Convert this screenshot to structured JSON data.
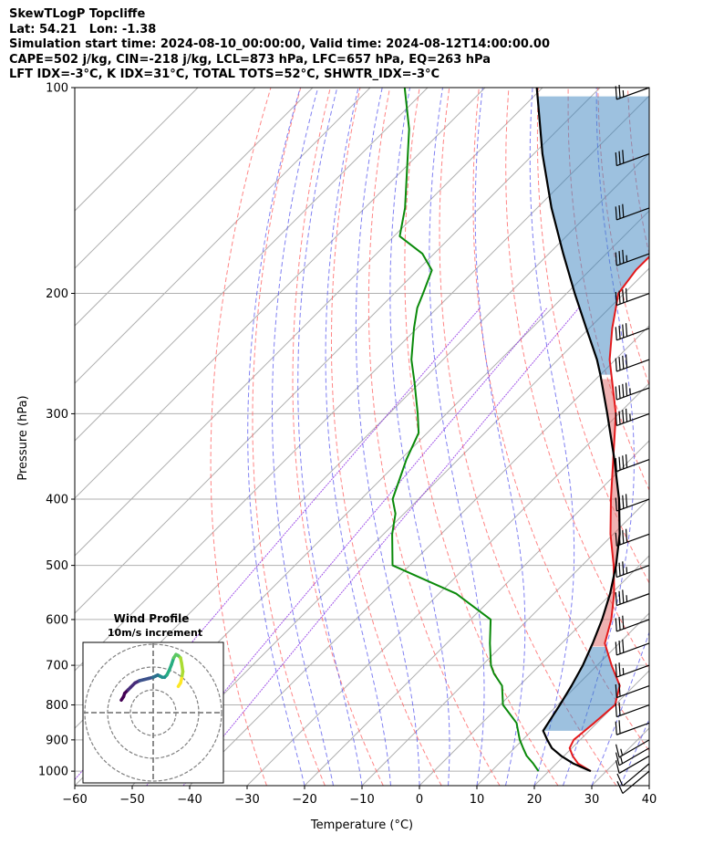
{
  "header": {
    "line1": "SkewTLogP Topcliffe",
    "line2": "Lat: 54.21   Lon: -1.38",
    "line3": "Simulation start time: 2024-08-10_00:00:00, Valid time: 2024-08-12T14:00:00.00",
    "line4": "CAPE=502 j/kg, CIN=-218 j/kg, LCL=873 hPa, LFC=657 hPa, EQ=263 hPa",
    "line5": "LFT IDX=-3°C, K IDX=31°C, TOTAL TOTS=52°C, SHWTR_IDX=-3°C"
  },
  "chart_data": {
    "type": "line",
    "xlabel": "Temperature (°C)",
    "ylabel": "Pressure (hPa)",
    "xlim": [
      -60,
      40
    ],
    "ylim": [
      1050,
      100
    ],
    "log_y": true,
    "x_ticks": [
      "−60",
      "−50",
      "−40",
      "−30",
      "−20",
      "−10",
      "0",
      "10",
      "20",
      "30",
      "40"
    ],
    "y_ticks": [
      "100",
      "200",
      "300",
      "400",
      "500",
      "600",
      "700",
      "800",
      "900",
      "1000"
    ],
    "grid": true,
    "colors": {
      "temperature": "#e41a1c",
      "dewpoint": "#0a8a0a",
      "parcel": "#000000",
      "cape": "#e06666",
      "cin": "#3b84c0",
      "dry_adiabat": "#ff6666",
      "moist_adiabat": "#5555ee",
      "mixing_ratio": "#8a2be2"
    },
    "temperature": {
      "p": [
        1000,
        975,
        950,
        925,
        900,
        850,
        800,
        750,
        700,
        650,
        600,
        550,
        500,
        450,
        400,
        350,
        300,
        250,
        225,
        200,
        185,
        170,
        150,
        130,
        115,
        100
      ],
      "t": [
        27.3,
        23.8,
        21.5,
        19.6,
        18.9,
        19.5,
        20.0,
        17.5,
        12.5,
        7.5,
        4.5,
        0.5,
        -4.5,
        -10.5,
        -16.5,
        -23.0,
        -30.5,
        -41.0,
        -46.0,
        -51.0,
        -52.0,
        -52.0,
        -52.0,
        -53.0,
        -54.0,
        -55.0
      ]
    },
    "dewpoint": {
      "p": [
        1000,
        975,
        950,
        925,
        900,
        850,
        800,
        750,
        720,
        700,
        650,
        600,
        550,
        500,
        450,
        420,
        400,
        350,
        320,
        300,
        270,
        250,
        225,
        210,
        200,
        185,
        175,
        165,
        150,
        130,
        115,
        100
      ],
      "t": [
        18.2,
        16.0,
        13.5,
        11.5,
        9.5,
        6.0,
        0.5,
        -3.0,
        -6.5,
        -8.5,
        -12.5,
        -16.5,
        -27.0,
        -43.0,
        -48.5,
        -51.5,
        -54.5,
        -59.0,
        -61.5,
        -65.0,
        -71.0,
        -75.5,
        -80.5,
        -83.5,
        -85.0,
        -87.5,
        -92.0,
        -99.0,
        -103.0,
        -110.0,
        -116.0,
        -124.0
      ]
    },
    "parcel": {
      "p": [
        1000,
        975,
        950,
        925,
        900,
        873,
        850,
        800,
        750,
        700,
        650,
        600,
        550,
        500,
        450,
        400,
        350,
        300,
        263,
        250,
        225,
        200,
        175,
        150,
        125,
        100
      ],
      "t": [
        27.3,
        23.0,
        19.5,
        16.5,
        14.3,
        12.0,
        11.5,
        10.4,
        9.1,
        7.5,
        5.4,
        2.9,
        -0.2,
        -4.1,
        -8.9,
        -15.1,
        -22.8,
        -32.0,
        -40.0,
        -43.2,
        -50.5,
        -58.6,
        -67.5,
        -77.5,
        -88.5,
        -101.0
      ]
    },
    "wind_barbs": {
      "p": [
        1000,
        975,
        950,
        925,
        900,
        850,
        800,
        750,
        700,
        650,
        600,
        550,
        500,
        450,
        400,
        350,
        300,
        275,
        250,
        225,
        200,
        175,
        150,
        125,
        100
      ],
      "speed_kt": [
        12,
        14,
        14,
        16,
        18,
        20,
        22,
        24,
        26,
        30,
        34,
        36,
        38,
        40,
        42,
        44,
        46,
        46,
        44,
        42,
        40,
        38,
        34,
        30,
        26
      ],
      "dir_deg": [
        230,
        230,
        240,
        240,
        240,
        250,
        250,
        250,
        250,
        250,
        250,
        250,
        250,
        250,
        250,
        250,
        250,
        250,
        250,
        250,
        250,
        250,
        250,
        250,
        250
      ]
    },
    "hodograph": {
      "title": "Wind Profile",
      "subtitle": "10m/s increment",
      "u": [
        -14.0,
        -13.0,
        -12.5,
        -11.0,
        -10.0,
        -8.0,
        -6.0,
        -4.0,
        -2.0,
        0.0,
        1.0,
        2.0,
        3.0,
        4.0,
        5.0,
        6.0,
        7.0,
        8.0,
        9.0,
        10.0,
        11.0,
        12.0,
        12.5,
        13.0,
        12.5,
        12.0,
        11.0
      ],
      "v": [
        5.5,
        7.0,
        8.5,
        10.0,
        11.0,
        13.0,
        14.0,
        14.5,
        15.0,
        15.5,
        16.0,
        16.5,
        16.0,
        15.5,
        15.5,
        16.5,
        18.5,
        21.0,
        24.0,
        25.5,
        25.0,
        24.0,
        21.5,
        18.0,
        15.0,
        13.0,
        11.5
      ]
    }
  }
}
